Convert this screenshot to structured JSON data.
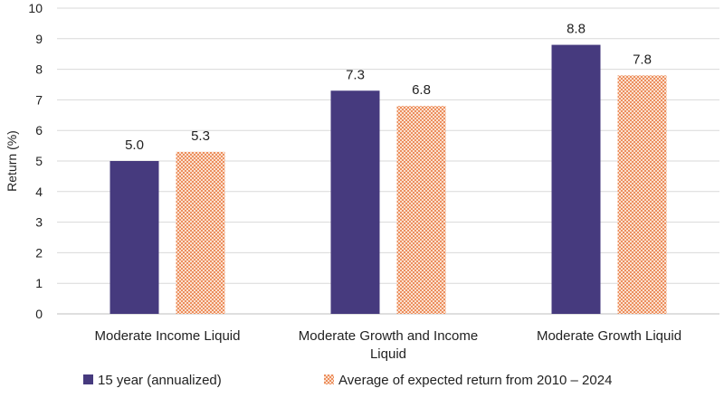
{
  "chart_data": {
    "type": "bar",
    "title": "",
    "xlabel": "",
    "ylabel": "Return (%)",
    "ylim": [
      0,
      10
    ],
    "yticks": [
      "0",
      "1",
      "2",
      "3",
      "4",
      "5",
      "6",
      "7",
      "8",
      "9",
      "10"
    ],
    "grid": true,
    "legend_position": "bottom-left",
    "categories": [
      [
        "Moderate Income Liquid"
      ],
      [
        "Moderate Growth and Income",
        "Liquid"
      ],
      [
        "Moderate Growth Liquid"
      ]
    ],
    "series": [
      {
        "name": "15 year (annualized)",
        "values": [
          5.0,
          7.3,
          8.8
        ],
        "labels": [
          "5.0",
          "7.3",
          "8.8"
        ],
        "color": "#463A7E",
        "pattern": "solid"
      },
      {
        "name": "Average of expected return from 2010 – 2024",
        "values": [
          5.3,
          6.8,
          7.8
        ],
        "labels": [
          "5.3",
          "6.8",
          "7.8"
        ],
        "color": "#F0A37A",
        "pattern": "dotted"
      }
    ]
  }
}
